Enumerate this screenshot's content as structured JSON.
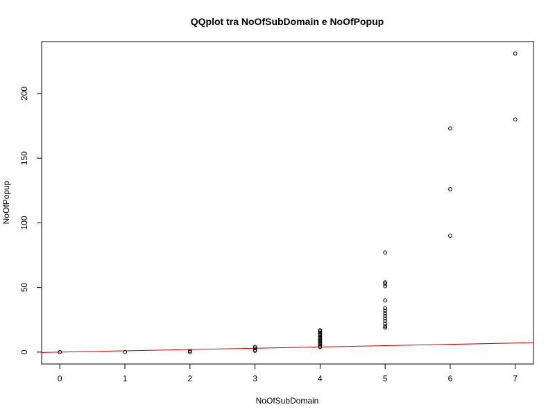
{
  "chart_data": {
    "type": "scatter",
    "title": "QQplot tra NoOfSubDomain e NoOfPopup",
    "xlabel": "NoOfSubDomain",
    "ylabel": "NoOfPopup",
    "xlim": [
      -0.28,
      7.28
    ],
    "ylim": [
      -9.2,
      240.2
    ],
    "xticks": [
      0,
      1,
      2,
      3,
      4,
      5,
      6,
      7
    ],
    "yticks": [
      0,
      50,
      100,
      150,
      200
    ],
    "grid": false,
    "legend": "none",
    "point_color": "#000000",
    "line_color": "#cc0000",
    "points": [
      [
        0,
        0
      ],
      [
        1,
        0
      ],
      [
        2,
        0
      ],
      [
        2,
        1
      ],
      [
        3,
        1
      ],
      [
        3,
        2
      ],
      [
        3,
        3
      ],
      [
        3,
        4
      ],
      [
        4,
        4
      ],
      [
        4,
        5
      ],
      [
        4,
        6
      ],
      [
        4,
        7
      ],
      [
        4,
        8
      ],
      [
        4,
        9
      ],
      [
        4,
        10
      ],
      [
        4,
        11
      ],
      [
        4,
        12
      ],
      [
        4,
        13
      ],
      [
        4,
        14
      ],
      [
        4,
        15
      ],
      [
        4,
        16
      ],
      [
        4,
        17
      ],
      [
        5,
        19
      ],
      [
        5,
        20
      ],
      [
        5,
        22
      ],
      [
        5,
        24
      ],
      [
        5,
        26
      ],
      [
        5,
        28
      ],
      [
        5,
        30
      ],
      [
        5,
        32
      ],
      [
        5,
        34
      ],
      [
        5,
        40
      ],
      [
        5,
        51
      ],
      [
        5,
        53
      ],
      [
        5,
        54
      ],
      [
        5,
        77
      ],
      [
        6,
        90
      ],
      [
        6,
        126
      ],
      [
        6,
        173
      ],
      [
        7,
        180
      ],
      [
        7,
        231
      ]
    ],
    "reference_line": {
      "intercept": 0,
      "slope": 1
    }
  }
}
